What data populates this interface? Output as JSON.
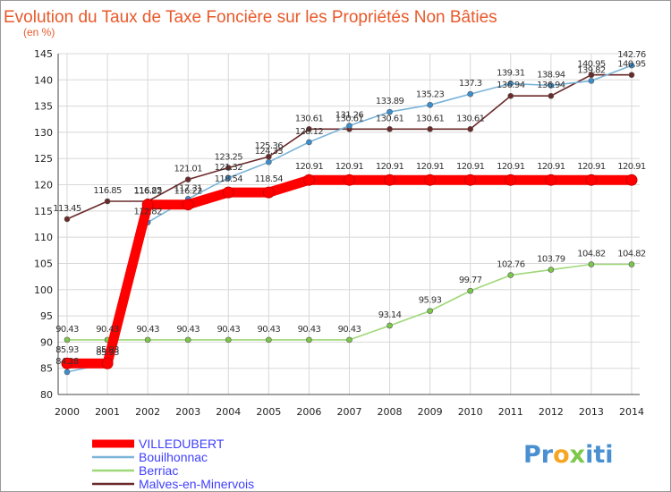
{
  "chart_data": {
    "type": "line",
    "title": "Evolution du Taux de Taxe Foncière sur les Propriétés Non Bâties",
    "subtitle": "(en %)",
    "xlabel": "",
    "ylabel": "(en %)",
    "ylim": [
      80,
      145
    ],
    "yticks": [
      80,
      85,
      90,
      95,
      100,
      105,
      110,
      115,
      120,
      125,
      130,
      135,
      140,
      145
    ],
    "grid": true,
    "legend_position": "bottom-left",
    "categories": [
      "2000",
      "2001",
      "2002",
      "2003",
      "2004",
      "2005",
      "2006",
      "2007",
      "2008",
      "2009",
      "2010",
      "2011",
      "2012",
      "2013",
      "2014"
    ],
    "series": [
      {
        "name": "VILLEDUBERT",
        "color": "#ff0000",
        "values": [
          85.93,
          85.93,
          116.22,
          116.22,
          118.54,
          118.54,
          120.91,
          120.91,
          120.91,
          120.91,
          120.91,
          120.91,
          120.91,
          120.91,
          120.91
        ],
        "labels": [
          "85.93",
          "85.93",
          "116.22",
          "116.22",
          "118.54",
          "118.54",
          "120.91",
          "120.91",
          "120.91",
          "120.91",
          "120.91",
          "120.91",
          "120.91",
          "120.91",
          "120.91"
        ]
      },
      {
        "name": "Bouilhonnac",
        "color": "#7ab4d8",
        "marker_color": "#3a8fd0",
        "values": [
          84.28,
          85.93,
          112.82,
          117.31,
          121.32,
          124.33,
          128.12,
          131.26,
          133.89,
          135.23,
          137.3,
          139.31,
          138.94,
          139.82,
          142.76
        ],
        "labels": [
          "84.28",
          "85.93",
          "112.82",
          "117.31",
          "121.32",
          "124.33",
          "128.12",
          "131.26",
          "133.89",
          "135.23",
          "137.3",
          "139.31",
          "138.94",
          "139.82",
          "142.76"
        ]
      },
      {
        "name": "Berriac",
        "color": "#9fd878",
        "marker_color": "#7bc84a",
        "values": [
          90.43,
          90.43,
          90.43,
          90.43,
          90.43,
          90.43,
          90.43,
          90.43,
          93.14,
          95.93,
          99.77,
          102.76,
          103.79,
          104.82,
          104.82
        ],
        "labels": [
          "90.43",
          "90.43",
          "90.43",
          "90.43",
          "90.43",
          "90.43",
          "90.43",
          "90.43",
          "93.14",
          "95.93",
          "99.77",
          "102.76",
          "103.79",
          "104.82",
          "104.82"
        ]
      },
      {
        "name": "Malves-en-Minervois",
        "color": "#6b2a2a",
        "marker_color": "#6b2a2a",
        "values": [
          113.45,
          116.85,
          116.85,
          121.01,
          123.25,
          125.36,
          130.61,
          130.61,
          130.61,
          130.61,
          130.61,
          136.94,
          136.94,
          140.95,
          140.95
        ],
        "labels": [
          "113.45",
          "116.85",
          "116.85",
          "121.01",
          "123.25",
          "125.36",
          "130.61",
          "130.61",
          "130.61",
          "130.61",
          "130.61",
          "136.94",
          "136.94",
          "140.95",
          "140.95"
        ]
      }
    ]
  },
  "legend": {
    "items": [
      {
        "label": "VILLEDUBERT",
        "color": "#ff0000",
        "text_color": "#4040ff"
      },
      {
        "label": "Bouilhonnac",
        "color": "#7ab4d8",
        "text_color": "#4040ff"
      },
      {
        "label": "Berriac",
        "color": "#9fd878",
        "text_color": "#4040ff"
      },
      {
        "label": "Malves-en-Minervois",
        "color": "#6b2a2a",
        "text_color": "#4040ff"
      }
    ]
  },
  "logo": {
    "parts": [
      {
        "text": "Pr",
        "color": "#4a90d0"
      },
      {
        "text": "o",
        "color": "#f5a623"
      },
      {
        "text": "x",
        "color": "#7bc84a"
      },
      {
        "text": "iti",
        "color": "#4a90d0"
      }
    ]
  }
}
